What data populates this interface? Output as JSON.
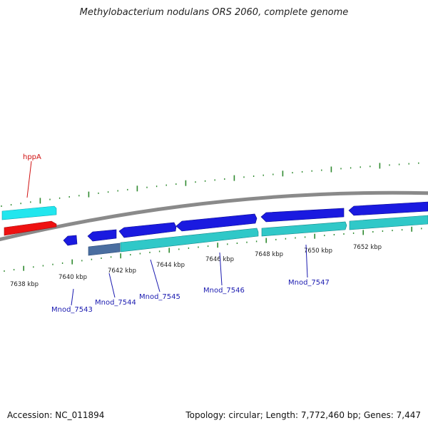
{
  "title": "Methylobacterium nodulans ORS 2060, complete genome",
  "footer": {
    "accession": "Accession: NC_011894",
    "summary": "Topology: circular; Length: 7,772,460 bp; Genes: 7,447"
  },
  "colors": {
    "background": "#ffffff",
    "backbone": "#8a8a8a",
    "tick": "#2f8a2f",
    "forward_gene": "#1a1ae0",
    "reverse_gene": "#30c8c8",
    "rna_gene": "#ee1111",
    "cyan_gene": "#22e6ee",
    "pseudo_gene": "#4a6ea0",
    "label_blue": "#1a1ab0",
    "label_red": "#d01010"
  },
  "scale_labels": [
    "7638 kbp",
    "7640 kbp",
    "7642 kbp",
    "7644 kbp",
    "7646 kbp",
    "7648 kbp",
    "7650 kbp",
    "7652 kbp"
  ],
  "gene_labels": [
    {
      "text": "hppA",
      "color": "red"
    },
    {
      "text": "Mnod_7543",
      "color": "blue"
    },
    {
      "text": "Mnod_7544",
      "color": "blue"
    },
    {
      "text": "Mnod_7545",
      "color": "blue"
    },
    {
      "text": "Mnod_7546",
      "color": "blue"
    },
    {
      "text": "Mnod_7547",
      "color": "blue"
    }
  ]
}
